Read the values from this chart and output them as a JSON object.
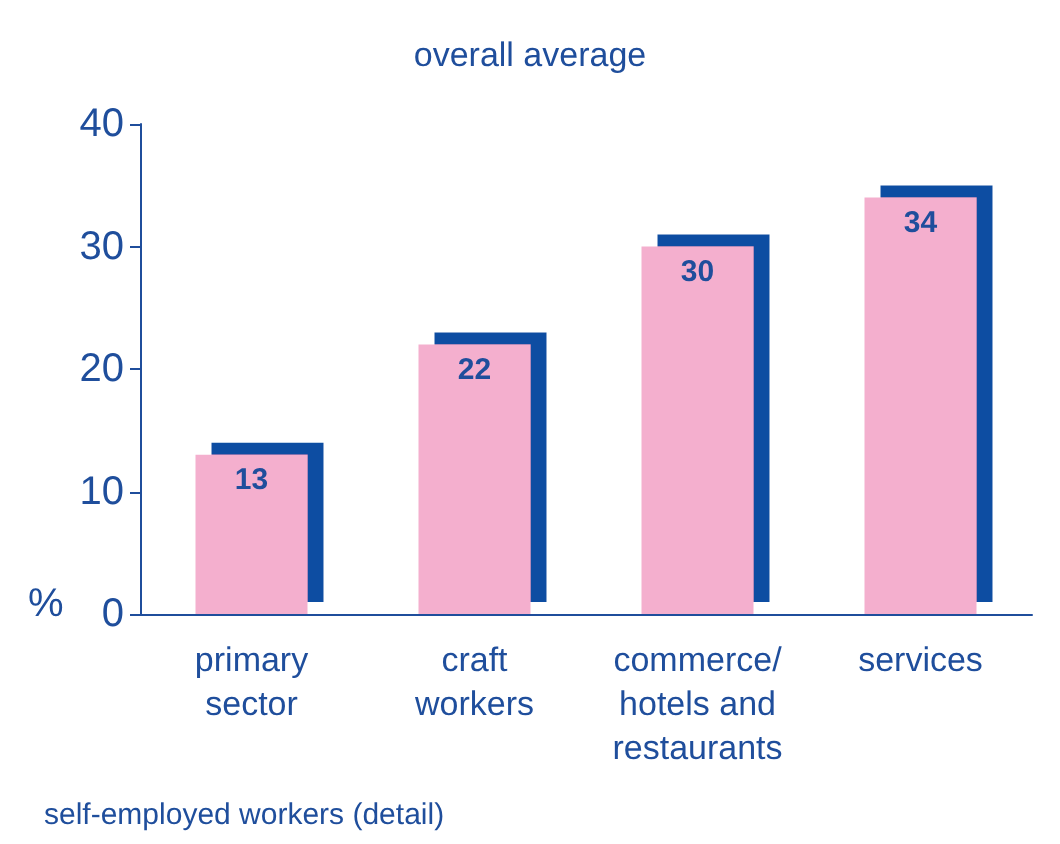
{
  "chart_data": {
    "type": "bar",
    "title": "overall average",
    "ylabel": "%",
    "categories": [
      "primary\nsector",
      "craft\nworkers",
      "commerce/\nhotels and\nrestaurants",
      "services"
    ],
    "values": [
      13,
      22,
      30,
      34
    ],
    "color": "#f4afce",
    "ylim": [
      0,
      40
    ],
    "yticks": [
      0,
      10,
      20,
      30,
      40
    ],
    "grid": false,
    "data_labels": true,
    "annotations": [
      "self-employed workers (detail)"
    ]
  }
}
